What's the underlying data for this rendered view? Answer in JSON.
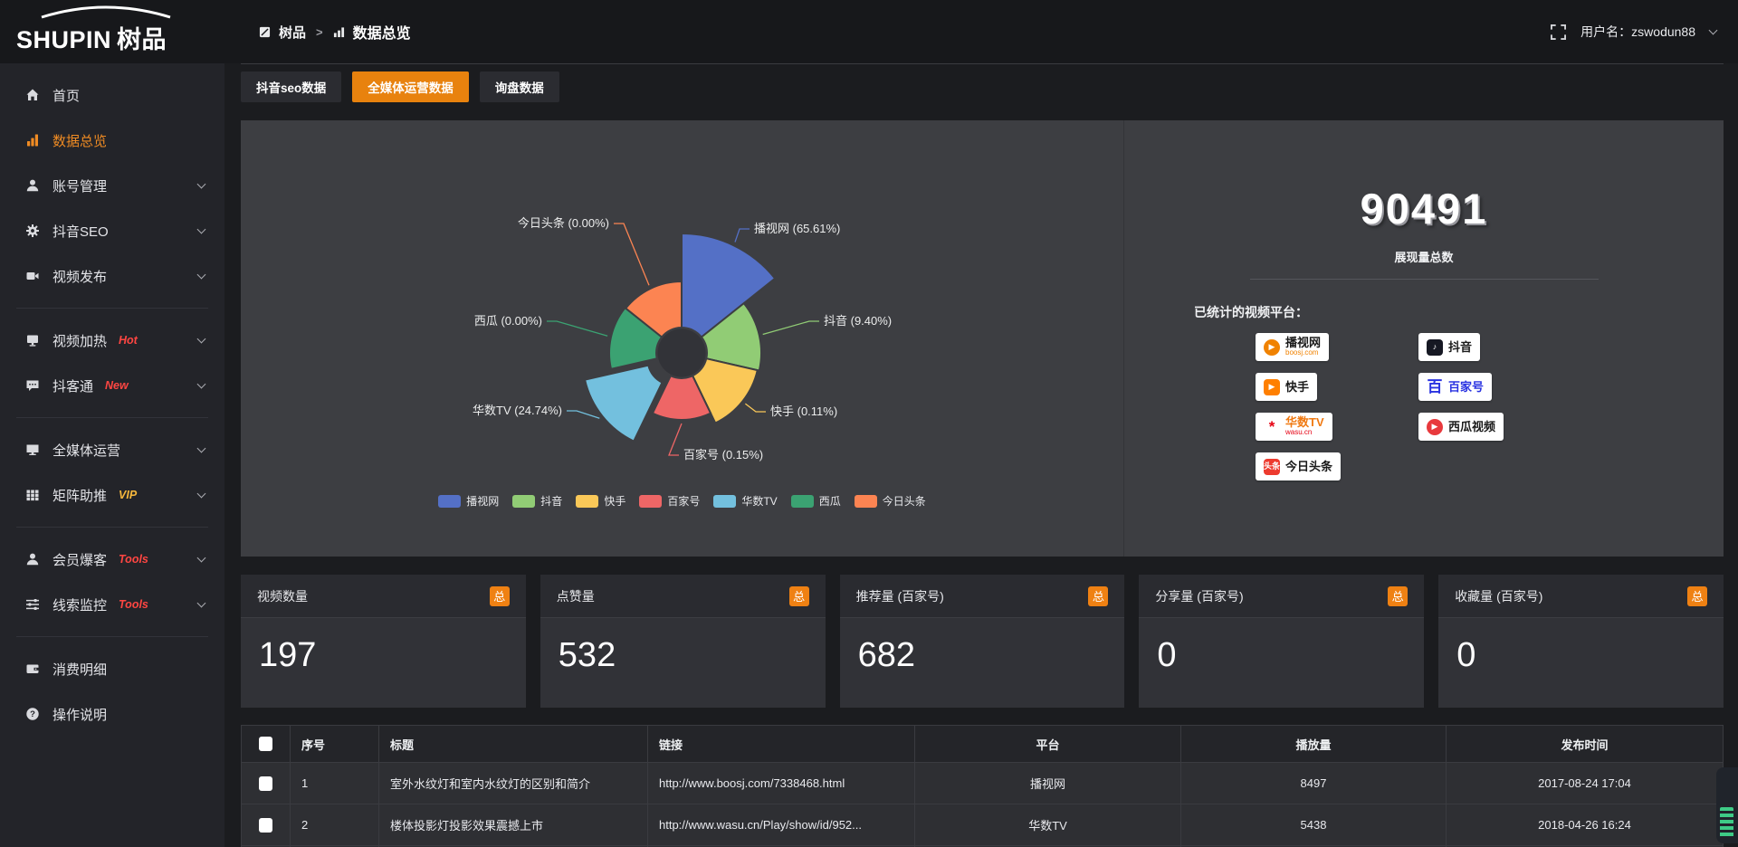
{
  "app": {
    "logo_en": "SHUPIN",
    "logo_cn": "树品"
  },
  "topbar": {
    "breadcrumb_root": "树品",
    "breadcrumb_sep": ">",
    "breadcrumb_current": "数据总览",
    "username_label": "用户名：",
    "username": "zswodun88"
  },
  "sidebar": {
    "items": [
      {
        "label": "首页",
        "icon": "home",
        "chevron": false,
        "active": false
      },
      {
        "label": "数据总览",
        "icon": "chart-bars",
        "chevron": false,
        "active": true
      },
      {
        "label": "账号管理",
        "icon": "user",
        "chevron": true,
        "active": false
      },
      {
        "label": "抖音SEO",
        "icon": "gear",
        "chevron": true,
        "active": false
      },
      {
        "label": "视频发布",
        "icon": "video-publish",
        "chevron": true,
        "active": false,
        "divider_after": true
      },
      {
        "label": "视频加热",
        "badge": "Hot",
        "badge_color": "#ff4642",
        "icon": "screen",
        "chevron": true,
        "active": false
      },
      {
        "label": "抖客通",
        "badge": "New",
        "badge_color": "#ff4642",
        "icon": "chat-bubble",
        "chevron": true,
        "active": false,
        "divider_after": true
      },
      {
        "label": "全媒体运营",
        "icon": "monitor",
        "chevron": true,
        "active": false
      },
      {
        "label": "矩阵助推",
        "badge": "VIP",
        "badge_color": "#f6b73c",
        "icon": "grid",
        "chevron": true,
        "active": false,
        "divider_after": true
      },
      {
        "label": "会员爆客",
        "badge": "Tools",
        "badge_color": "#ff4642",
        "icon": "member",
        "chevron": true,
        "active": false
      },
      {
        "label": "线索监控",
        "badge": "Tools",
        "badge_color": "#ff4642",
        "icon": "sliders",
        "chevron": true,
        "active": false,
        "divider_after": true
      },
      {
        "label": "消费明细",
        "icon": "wallet",
        "chevron": false,
        "active": false
      },
      {
        "label": "操作说明",
        "icon": "question",
        "chevron": false,
        "active": false
      }
    ]
  },
  "tabs": [
    {
      "label": "抖音seo数据",
      "active": false
    },
    {
      "label": "全媒体运营数据",
      "active": true
    },
    {
      "label": "询盘数据",
      "active": false
    }
  ],
  "chart_data": {
    "type": "pie",
    "variant": "nightingale-rose",
    "legend_position": "bottom",
    "label_format": "{name} ({percent}%)",
    "series": [
      {
        "name": "播视网",
        "percent": 65.61,
        "color": "#5470c6"
      },
      {
        "name": "抖音",
        "percent": 9.4,
        "color": "#91cc75"
      },
      {
        "name": "快手",
        "percent": 0.11,
        "color": "#fac858"
      },
      {
        "name": "百家号",
        "percent": 0.15,
        "color": "#ee6666"
      },
      {
        "name": "华数TV",
        "percent": 24.74,
        "color": "#73c0de",
        "selected": true
      },
      {
        "name": "西瓜",
        "percent": 0.0,
        "color": "#3ba272"
      },
      {
        "name": "今日头条",
        "percent": 0.0,
        "color": "#fc8452"
      }
    ],
    "legend": [
      "播视网",
      "抖音",
      "快手",
      "百家号",
      "华数TV",
      "西瓜",
      "今日头条"
    ]
  },
  "summary": {
    "total": "90491",
    "total_label": "展现量总数",
    "platforms_label": "已统计的视频平台：",
    "platforms": [
      {
        "name": "播视网",
        "sub": "boosj.com",
        "icon": "boosj-logo",
        "shape": "circle",
        "logo_color": "#f08200",
        "glyph": "▶",
        "text_color": "#1a1a1a",
        "sub_color": "#f08200"
      },
      {
        "name": "快手",
        "icon": "kuaishou-logo",
        "shape": "square",
        "logo_color": "#ff7f00",
        "glyph": "▶",
        "text_color": "#1a1a1a"
      },
      {
        "name": "华数TV",
        "sub": "wasu.cn",
        "icon": "wasu-logo",
        "shape": "none",
        "logo_color": "#e60012",
        "glyph": "*",
        "text_color": "#f07a13",
        "sub_color": "#e60012"
      },
      {
        "name": "今日头条",
        "icon": "toutiao-logo",
        "shape": "square",
        "logo_color": "#ed3b2f",
        "glyph": "头条",
        "text_color": "#1a1a1a"
      },
      {
        "name": "抖音",
        "icon": "douyin-logo",
        "shape": "square",
        "logo_color": "#161823",
        "glyph": "♪",
        "text_color": "#1a1a1a"
      },
      {
        "name": "百家号",
        "icon": "baijiahao-logo",
        "shape": "none",
        "logo_color": "#2932e1",
        "glyph": "百",
        "text_color": "#2932e1"
      },
      {
        "name": "西瓜视频",
        "icon": "xigua-logo",
        "shape": "circle",
        "logo_color": "#e8393d",
        "glyph": "▶",
        "text_color": "#1a1a1a"
      }
    ]
  },
  "stat_cards": [
    {
      "title": "视频数量",
      "badge": "总",
      "value": "197"
    },
    {
      "title": "点赞量",
      "badge": "总",
      "value": "532"
    },
    {
      "title": "推荐量 (百家号)",
      "badge": "总",
      "value": "682"
    },
    {
      "title": "分享量 (百家号)",
      "badge": "总",
      "value": "0"
    },
    {
      "title": "收藏量 (百家号)",
      "badge": "总",
      "value": "0"
    }
  ],
  "table": {
    "headers": [
      "序号",
      "标题",
      "链接",
      "平台",
      "播放量",
      "发布时间"
    ],
    "rows": [
      {
        "index": "1",
        "title": "室外水纹灯和室内水纹灯的区别和简介",
        "link": "http://www.boosj.com/7338468.html",
        "platform": "播视网",
        "plays": "8497",
        "time": "2017-08-24 17:04"
      },
      {
        "index": "2",
        "title": "楼体投影灯投影效果震撼上市",
        "link": "http://www.wasu.cn/Play/show/id/952...",
        "platform": "华数TV",
        "plays": "5438",
        "time": "2018-04-26 16:24"
      }
    ]
  }
}
